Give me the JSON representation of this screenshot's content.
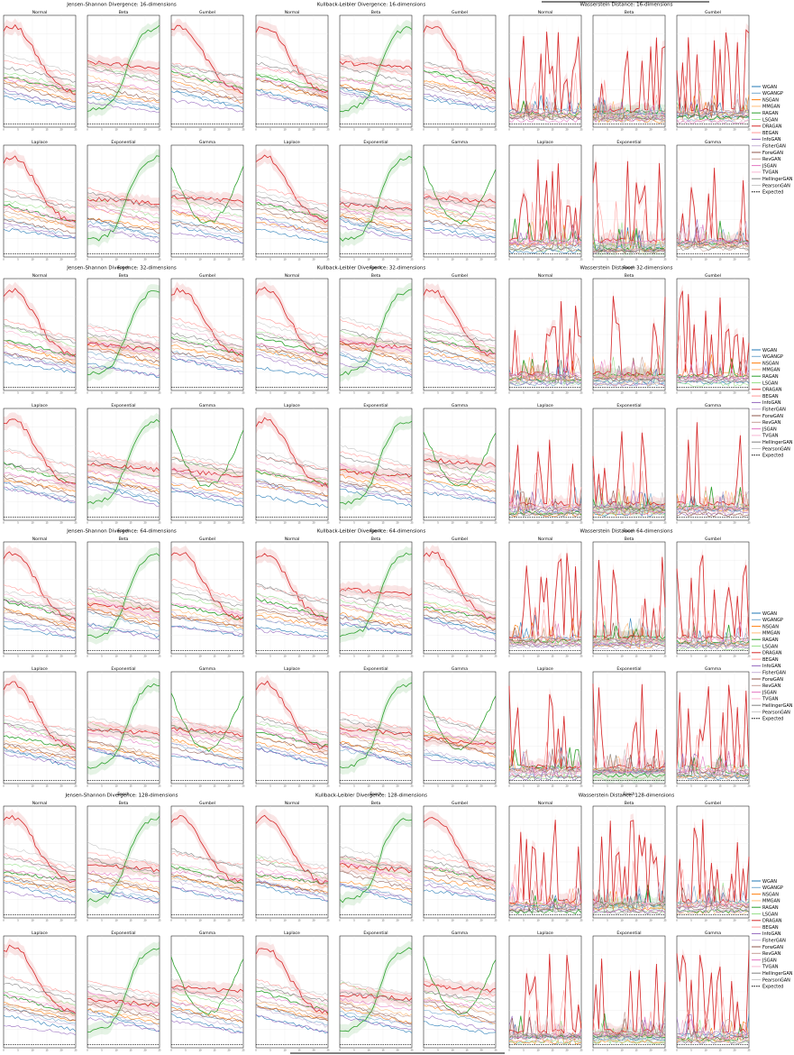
{
  "colors": {
    "WGAN": "#1f77b4",
    "WGANGP": "#74a9cf",
    "NSGAN": "#ff7f0e",
    "MMGAN": "#ffbb78",
    "RAGAN": "#2ca02c",
    "LSGAN": "#98df8a",
    "DRAGAN": "#d62728",
    "BEGAN": "#ff9896",
    "InfoGAN": "#9467bd",
    "FisherGAN": "#c5b0d5",
    "ForwGAN": "#8c564b",
    "RevGAN": "#c49c94",
    "JSGAN": "#e377c2",
    "TVGAN": "#f7b6d2",
    "HellingerGAN": "#7f7f7f",
    "PearsonGAN": "#c7c7c7",
    "Expected": "#000000"
  },
  "legend": {
    "items": [
      "WGAN",
      "WGANGP",
      "NSGAN",
      "MMGAN",
      "RAGAN",
      "LSGAN",
      "DRAGAN",
      "BEGAN",
      "InfoGAN",
      "FisherGAN",
      "ForwGAN",
      "RevGAN",
      "JSGAN",
      "TVGAN",
      "HellingerGAN",
      "PearsonGAN",
      "Expected"
    ]
  },
  "common": {
    "xlabel": "Epoch",
    "xticks": [
      "0",
      "5",
      "10",
      "15",
      "20",
      "25"
    ]
  },
  "blocks": [
    {
      "titles": [
        "Jensen-Shannon Divergence: 16-dimensions",
        "Kullback-Leibler Divergence: 16-dimensions",
        "Wasserstein Distance: 16-dimensions"
      ]
    },
    {
      "titles": [
        "Jensen-Shannon Divergence: 32-dimensions",
        "Kullback-Leibler Divergence: 32-dimensions",
        "Wasserstein Distance: 32-dimensions"
      ]
    },
    {
      "titles": [
        "Jensen-Shannon Divergence: 64-dimensions",
        "Kullback-Leibler Divergence: 64-dimensions",
        "Wasserstein Distance: 64-dimensions"
      ]
    },
    {
      "titles": [
        "Jensen-Shannon Divergence: 128-dimensions",
        "Kullback-Leibler Divergence: 128-dimensions",
        "Wasserstein Distance: 128-dimensions"
      ]
    }
  ],
  "distributions": [
    [
      "Normal",
      "Beta",
      "Gumbel"
    ],
    [
      "Laplace",
      "Exponential",
      "Gamma"
    ]
  ],
  "chart_data": {
    "type": "line",
    "xlabel": "Epoch",
    "x": [
      0,
      1,
      2,
      3,
      4,
      5,
      6,
      7,
      8,
      9,
      10,
      11,
      12,
      13,
      14,
      15,
      16,
      17,
      18,
      19,
      20,
      21,
      22,
      23,
      24,
      25
    ],
    "xlim": [
      0,
      25
    ],
    "series_names": [
      "WGAN",
      "WGANGP",
      "NSGAN",
      "MMGAN",
      "RAGAN",
      "LSGAN",
      "DRAGAN",
      "BEGAN",
      "InfoGAN",
      "FisherGAN",
      "ForwGAN",
      "RevGAN",
      "JSGAN",
      "TVGAN",
      "HellingerGAN",
      "PearsonGAN",
      "Expected"
    ],
    "metrics": [
      "Jensen-Shannon Divergence",
      "Kullback-Leibler Divergence",
      "Wasserstein Distance"
    ],
    "dimensions": [
      16,
      32,
      64,
      128
    ],
    "distributions": [
      "Normal",
      "Beta",
      "Gumbel",
      "Laplace",
      "Exponential",
      "Gamma"
    ],
    "grid": true,
    "legend_position": "right",
    "approximate_trends": {
      "DRAGAN": "high early peak then decays on JS/KL Normal, Laplace and Gumbel panels; spiky on Wasserstein panels",
      "RAGAN": "rises steadily over epochs on Beta and Exponential panels",
      "Expected": "flat dashed baseline near zero"
    }
  }
}
